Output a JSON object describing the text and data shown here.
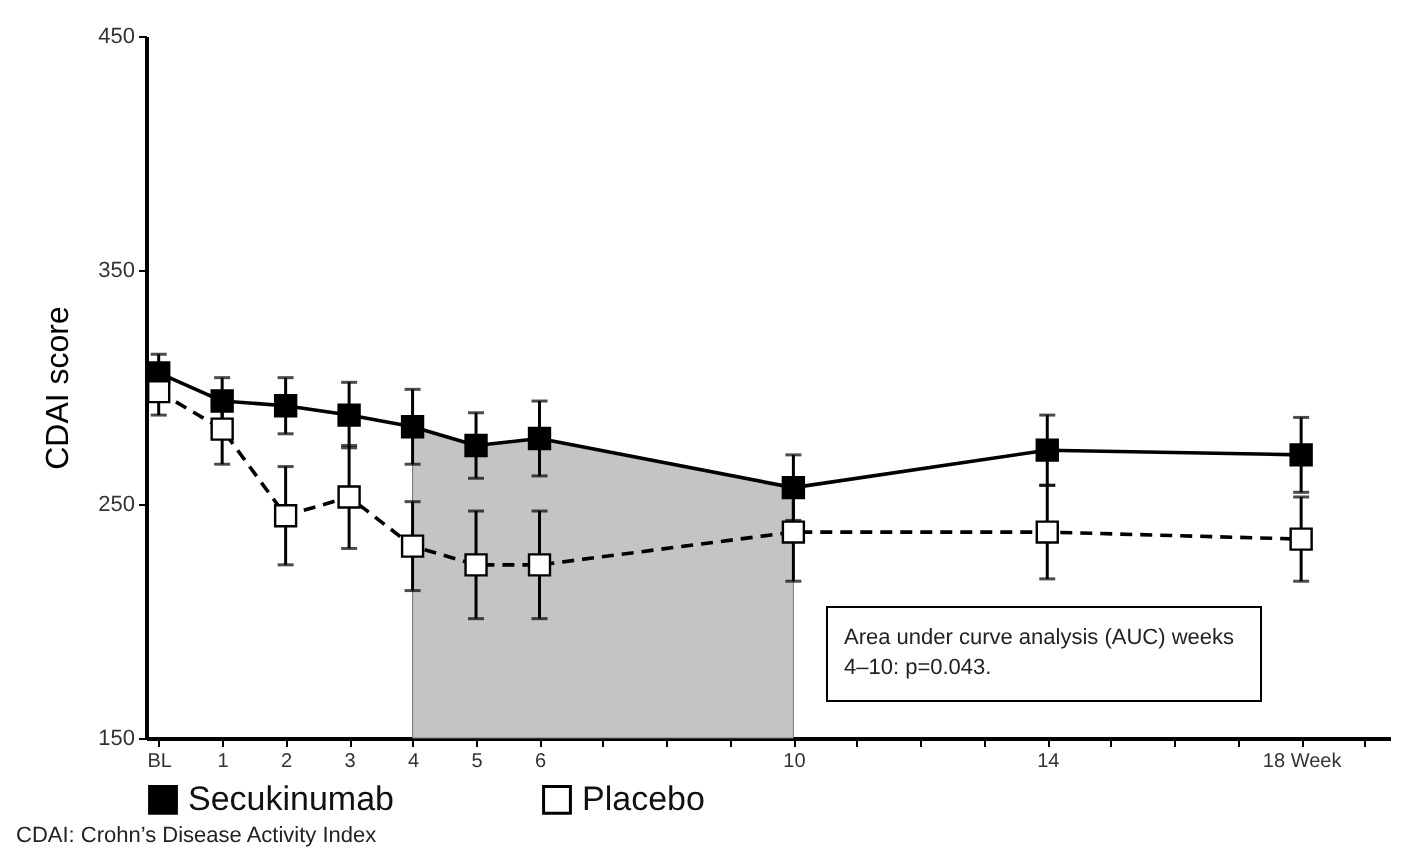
{
  "chart_data": {
    "type": "line",
    "ylabel": "CDAI score",
    "x": [
      0,
      1,
      2,
      3,
      4,
      5,
      6,
      10,
      14,
      18
    ],
    "series": [
      {
        "name": "Secukinumab",
        "color": "#000000",
        "marker": "square",
        "line_style": "solid",
        "values": [
          306,
          294,
          292,
          288,
          283,
          275,
          278,
          257,
          273,
          271
        ],
        "errors": [
          8,
          10,
          12,
          14,
          16,
          14,
          16,
          14,
          15,
          16
        ]
      },
      {
        "name": "Placebo",
        "color": "#000000",
        "marker": "square",
        "line_style": "dashed",
        "values": [
          298,
          282,
          245,
          253,
          232,
          224,
          224,
          238,
          238,
          235
        ],
        "errors": [
          10,
          15,
          21,
          22,
          19,
          23,
          23,
          21,
          20,
          18
        ]
      }
    ],
    "bands": [
      {
        "axis": "x",
        "from": 4,
        "to": 10,
        "color": "#c4c4c4"
      }
    ],
    "xlim": [
      -0.2,
      19.4
    ],
    "ylim": [
      150,
      450
    ],
    "xticks": [
      {
        "value": 0,
        "label": "BL"
      },
      1,
      2,
      3,
      4,
      5,
      6,
      {
        "value": 7,
        "label": null
      },
      {
        "value": 8,
        "label": null
      },
      {
        "value": 9,
        "label": null
      },
      10,
      {
        "value": 11,
        "label": null
      },
      {
        "value": 12,
        "label": null
      },
      {
        "value": 13,
        "label": null
      },
      14,
      {
        "value": 15,
        "label": null
      },
      {
        "value": 16,
        "label": null
      },
      {
        "value": 17,
        "label": null
      },
      {
        "value": 18,
        "label": "18 Week"
      },
      {
        "value": 19,
        "label": null
      }
    ],
    "yticks": [
      150,
      250,
      350,
      450
    ],
    "legend": "bottom",
    "grid": false,
    "annotations": [
      "Area under curve analysis (AUC) weeks 4–10: p=0.043.",
      "CDAI: Crohn’s Disease Activity Index"
    ]
  }
}
